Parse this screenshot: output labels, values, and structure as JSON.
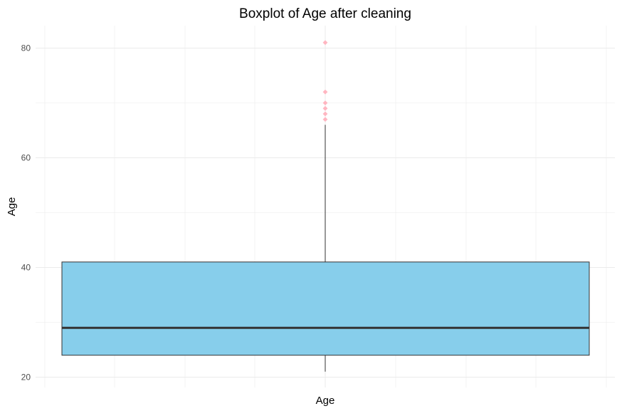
{
  "chart_data": {
    "type": "boxplot",
    "title": "Boxplot of Age after cleaning",
    "xlabel": "Age",
    "ylabel": "Age",
    "ylim": [
      19,
      85
    ],
    "yticks": [
      20,
      40,
      60,
      80
    ],
    "grid": true,
    "legend": "none",
    "box": {
      "category": "Age",
      "whisker_low": 21,
      "q1": 24,
      "median": 29,
      "q3": 41,
      "whisker_high": 66,
      "outliers": [
        67,
        68,
        69,
        70,
        72,
        81
      ]
    },
    "colors": {
      "box_fill": "#87ceeb",
      "outlier": "#ffb6c1",
      "median_line": "#333333",
      "grid": "#ebebeb"
    }
  }
}
